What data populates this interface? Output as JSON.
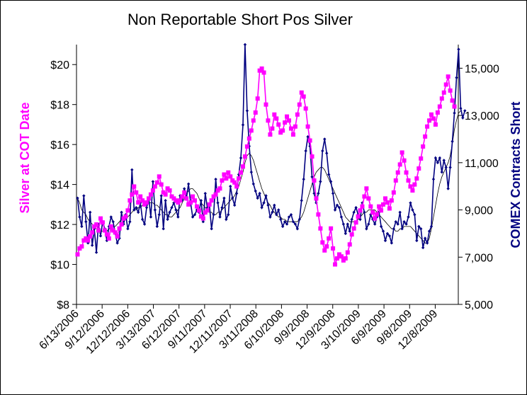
{
  "chart_data": {
    "type": "line",
    "title": "Non Reportable Short Pos Silver",
    "ylabel": "Silver at COT Date",
    "y2label": "COMEX Contracts Short",
    "ylim": [
      8,
      21
    ],
    "y2lim": [
      5000,
      16000
    ],
    "yticks": [
      "$8",
      "$10",
      "$12",
      "$14",
      "$16",
      "$18",
      "$20"
    ],
    "y2ticks": [
      "5,000",
      "7,000",
      "9,000",
      "11,000",
      "13,000",
      "15,000"
    ],
    "xticks": [
      "6/13/2006",
      "9/12/2006",
      "12/12/2006",
      "3/13/2007",
      "6/12/2007",
      "9/11/2007",
      "12/11/2007",
      "3/11/2008",
      "6/10/2008",
      "9/9/2008",
      "12/9/2008",
      "3/10/2009",
      "6/9/2009",
      "9/8/2009",
      "12/8/2009"
    ],
    "colors": {
      "silver": "#ff00ff",
      "contracts": "#000080",
      "moving_average": "#000000"
    },
    "series": [
      {
        "name": "Silver at COT Date",
        "axis": "left",
        "values": [
          10.5,
          10.8,
          10.9,
          11.2,
          11.3,
          11.2,
          11.4,
          11.6,
          11.9,
          12.0,
          11.7,
          12.3,
          12.1,
          11.7,
          11.5,
          11.3,
          11.9,
          11.7,
          11.6,
          11.4,
          11.8,
          12.0,
          12.3,
          12.4,
          12.7,
          13.2,
          13.5,
          13.9,
          13.6,
          13.1,
          13.4,
          13.2,
          13.0,
          13.1,
          13.3,
          13.5,
          13.7,
          13.9,
          14.1,
          14.4,
          14.0,
          13.6,
          13.5,
          13.8,
          13.7,
          13.4,
          13.3,
          13.2,
          13.1,
          13.2,
          13.4,
          13.6,
          13.3,
          13.0,
          13.1,
          13.4,
          13.2,
          12.9,
          12.7,
          12.4,
          12.3,
          12.6,
          12.7,
          13.0,
          13.2,
          13.4,
          13.5,
          13.7,
          13.8,
          14.2,
          14.5,
          14.3,
          14.6,
          14.4,
          14.2,
          14.1,
          13.9,
          14.3,
          14.6,
          14.9,
          15.4,
          15.9,
          16.3,
          16.7,
          17.2,
          17.6,
          18.3,
          19.7,
          19.8,
          19.6,
          18.0,
          17.2,
          16.5,
          16.8,
          17.5,
          17.3,
          17.0,
          16.6,
          16.7,
          17.1,
          17.4,
          17.2,
          16.8,
          16.5,
          16.9,
          17.5,
          18.0,
          18.6,
          18.4,
          17.8,
          16.9,
          16.2,
          15.4,
          14.2,
          13.3,
          12.5,
          11.8,
          11.1,
          10.7,
          10.9,
          11.3,
          11.8,
          10.8,
          10.0,
          10.3,
          10.5,
          10.4,
          10.2,
          10.3,
          10.6,
          11.0,
          11.5,
          11.8,
          12.1,
          12.4,
          12.7,
          12.9,
          13.4,
          13.8,
          13.3,
          12.9,
          12.6,
          12.3,
          12.5,
          12.9,
          12.7,
          13.0,
          13.3,
          13.1,
          12.8,
          13.2,
          13.6,
          14.2,
          14.6,
          15.0,
          15.6,
          15.2,
          14.6,
          14.2,
          13.9,
          13.7,
          14.0,
          14.3,
          14.8,
          15.3,
          15.9,
          16.4,
          16.9,
          17.2,
          17.5,
          17.3,
          17.0,
          17.6,
          17.9,
          18.3,
          18.6,
          19.0,
          19.4,
          18.7,
          18.2,
          17.9
        ]
      },
      {
        "name": "COMEX Contracts Short",
        "axis": "right",
        "values": [
          9500,
          8700,
          8300,
          9600,
          8500,
          7600,
          8900,
          7500,
          8200,
          7200,
          8400,
          7900,
          8500,
          8200,
          7700,
          8300,
          8700,
          8500,
          8000,
          7600,
          7800,
          8900,
          8400,
          8800,
          8200,
          8500,
          10700,
          9000,
          9100,
          8900,
          9300,
          8600,
          8400,
          9100,
          9500,
          8700,
          10200,
          9000,
          8300,
          8800,
          9600,
          8200,
          9400,
          8600,
          8900,
          9100,
          9300,
          9000,
          8700,
          9600,
          9400,
          9900,
          9500,
          10100,
          9300,
          8700,
          8800,
          9000,
          8900,
          9400,
          8500,
          9700,
          9100,
          9200,
          8200,
          8800,
          10300,
          9300,
          8700,
          9100,
          9500,
          8600,
          8800,
          10000,
          9500,
          9200,
          9700,
          10500,
          11200,
          12600,
          16000,
          13200,
          11700,
          10600,
          10100,
          9800,
          9500,
          9700,
          9100,
          9300,
          9600,
          9200,
          8700,
          8900,
          9200,
          8800,
          9000,
          8600,
          8300,
          8500,
          8400,
          8700,
          8800,
          8500,
          8400,
          8200,
          8600,
          9400,
          10300,
          11500,
          12100,
          11700,
          10400,
          9700,
          9300,
          9700,
          10200,
          11500,
          12000,
          11400,
          10500,
          10200,
          9700,
          9000,
          9200,
          9100,
          8700,
          8400,
          8000,
          8400,
          8100,
          8600,
          8900,
          9100,
          8800,
          8600,
          9300,
          8900,
          8200,
          8400,
          8800,
          8600,
          8400,
          8700,
          8900,
          8300,
          8100,
          7700,
          8000,
          7900,
          7600,
          8200,
          8500,
          8400,
          8900,
          8200,
          8500,
          8400,
          8700,
          9300,
          9000,
          8800,
          7700,
          8300,
          8200,
          7400,
          7800,
          7600,
          8100,
          8300,
          10300,
          11200,
          11000,
          11200,
          10600,
          11100,
          10800,
          9900,
          10800,
          11900,
          13100,
          14600,
          15800,
          13300,
          12900,
          13200
        ]
      },
      {
        "name": "Moving average",
        "axis": "right",
        "values": [
          9500,
          9300,
          9000,
          8900,
          8800,
          8600,
          8500,
          8400,
          8300,
          8200,
          8200,
          8100,
          8100,
          8100,
          8100,
          8200,
          8200,
          8300,
          8300,
          8400,
          8500,
          8600,
          8600,
          8700,
          8700,
          8800,
          8900,
          9000,
          9000,
          9100,
          9100,
          9200,
          9200,
          9300,
          9300,
          9300,
          9300,
          9200,
          9200,
          9100,
          9000,
          8900,
          8800,
          8800,
          8700,
          8700,
          8800,
          8900,
          9000,
          9100,
          9300,
          9500,
          9700,
          9800,
          9900,
          9900,
          9800,
          9700,
          9500,
          9300,
          9200,
          9100,
          9000,
          8900,
          8900,
          8800,
          8800,
          8900,
          8900,
          9000,
          9100,
          9200,
          9300,
          9400,
          9500,
          9600,
          9800,
          10000,
          10300,
          10600,
          11000,
          11300,
          11400,
          11300,
          11100,
          10800,
          10500,
          10200,
          9900,
          9700,
          9500,
          9300,
          9200,
          9000,
          8900,
          8800,
          8700,
          8700,
          8600,
          8600,
          8500,
          8500,
          8500,
          8500,
          8500,
          8500,
          8600,
          8700,
          8900,
          9200,
          9500,
          9800,
          10100,
          10400,
          10600,
          10700,
          10800,
          10800,
          10700,
          10500,
          10300,
          10100,
          9900,
          9700,
          9500,
          9300,
          9100,
          8900,
          8700,
          8600,
          8500,
          8500,
          8500,
          8500,
          8600,
          8700,
          8800,
          8900,
          8900,
          9000,
          9000,
          9000,
          9000,
          8900,
          8800,
          8700,
          8600,
          8500,
          8400,
          8300,
          8200,
          8200,
          8100,
          8100,
          8200,
          8200,
          8300,
          8300,
          8300,
          8300,
          8200,
          8100,
          8000,
          7900,
          7800,
          7700,
          7600,
          7600,
          7800,
          8200,
          8700,
          9200,
          9700,
          10100,
          10400,
          10600,
          10800,
          11000,
          11300,
          11800,
          12400,
          12800,
          13100,
          13200
        ]
      }
    ]
  }
}
